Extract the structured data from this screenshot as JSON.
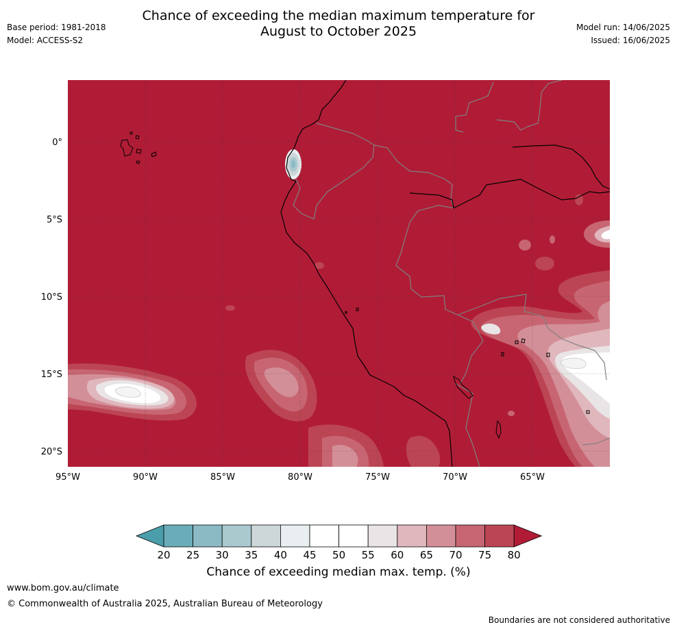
{
  "title": {
    "line1": "Chance of exceeding the median maximum temperature for",
    "line2": "August to October 2025"
  },
  "meta_left": {
    "base_period": "Base period: 1981-2018",
    "model": "Model: ACCESS-S2"
  },
  "meta_right": {
    "model_run": "Model run: 14/06/2025",
    "issued": "Issued: 16/06/2025"
  },
  "map": {
    "lat_labels": [
      "0°",
      "5°S",
      "10°S",
      "15°S",
      "20°S"
    ],
    "lon_labels": [
      "95°W",
      "90°W",
      "85°W",
      "80°W",
      "75°W",
      "70°W",
      "65°W"
    ],
    "background_color": "#b01c36",
    "coastline_color": "#000000",
    "border_color": "#808080"
  },
  "colorbar": {
    "ticks": [
      "20",
      "25",
      "30",
      "35",
      "40",
      "45",
      "50",
      "55",
      "60",
      "65",
      "70",
      "75",
      "80"
    ],
    "colors": [
      "#4a9eaa",
      "#6aadb9",
      "#8bbac5",
      "#a9c9cf",
      "#cdd7da",
      "#e9eef0",
      "#ffffff",
      "#ffffff",
      "#e9e5e6",
      "#e0b7bd",
      "#d38f98",
      "#c76672",
      "#bc4554",
      "#b01c36"
    ],
    "label": "Chance of exceeding median max. temp. (%)"
  },
  "footer": {
    "url": "www.bom.gov.au/climate",
    "copyright": "© Commonwealth of Australia 2025, Australian Bureau of Meteorology",
    "note": "Boundaries are not considered authoritative"
  }
}
